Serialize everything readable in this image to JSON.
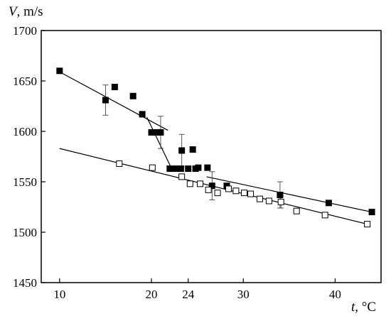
{
  "chart_data": {
    "type": "scatter",
    "title": "",
    "xlabel": {
      "symbol": "t",
      "unit": ", °C"
    },
    "ylabel": {
      "symbol": "V",
      "unit": ", m/s"
    },
    "xlim": [
      8,
      45
    ],
    "ylim": [
      1450,
      1700
    ],
    "x_ticks": [
      10,
      20,
      24,
      30,
      40
    ],
    "y_ticks": [
      1450,
      1500,
      1550,
      1600,
      1650,
      1700
    ],
    "grid": false,
    "legend": "none",
    "series": [
      {
        "marker": "filled-square",
        "color": "#000000",
        "points": [
          {
            "x": 10.0,
            "y": 1660
          },
          {
            "x": 15.0,
            "y": 1631,
            "err": 15
          },
          {
            "x": 16.0,
            "y": 1644
          },
          {
            "x": 18.0,
            "y": 1635
          },
          {
            "x": 19.0,
            "y": 1617
          },
          {
            "x": 20.0,
            "y": 1599
          },
          {
            "x": 20.6,
            "y": 1599
          },
          {
            "x": 21.0,
            "y": 1599,
            "err": 16
          },
          {
            "x": 22.0,
            "y": 1563
          },
          {
            "x": 22.6,
            "y": 1563
          },
          {
            "x": 23.2,
            "y": 1563
          },
          {
            "x": 23.3,
            "y": 1581,
            "err": 16
          },
          {
            "x": 24.0,
            "y": 1563
          },
          {
            "x": 24.5,
            "y": 1582
          },
          {
            "x": 24.8,
            "y": 1563
          },
          {
            "x": 25.1,
            "y": 1564
          },
          {
            "x": 26.1,
            "y": 1564
          },
          {
            "x": 26.6,
            "y": 1546,
            "err": 14
          },
          {
            "x": 28.2,
            "y": 1546
          },
          {
            "x": 34.0,
            "y": 1537,
            "err": 13
          },
          {
            "x": 39.3,
            "y": 1529
          },
          {
            "x": 44.0,
            "y": 1520
          }
        ],
        "fit_lines": [
          {
            "x": [
              10.0,
              21.8
            ],
            "y": [
              1659,
              1601
            ]
          },
          {
            "x": [
              19.5,
              22.2
            ],
            "y": [
              1614,
              1563
            ]
          },
          {
            "x": [
              26.0,
              44.0
            ],
            "y": [
              1555,
              1520
            ]
          }
        ]
      },
      {
        "marker": "open-square",
        "color": "#000000",
        "points": [
          {
            "x": 16.5,
            "y": 1568
          },
          {
            "x": 20.1,
            "y": 1564
          },
          {
            "x": 23.3,
            "y": 1555
          },
          {
            "x": 24.2,
            "y": 1548
          },
          {
            "x": 25.3,
            "y": 1548
          },
          {
            "x": 26.2,
            "y": 1542
          },
          {
            "x": 27.2,
            "y": 1539
          },
          {
            "x": 28.4,
            "y": 1543
          },
          {
            "x": 29.2,
            "y": 1541
          },
          {
            "x": 30.1,
            "y": 1539
          },
          {
            "x": 30.8,
            "y": 1538
          },
          {
            "x": 31.8,
            "y": 1533
          },
          {
            "x": 32.8,
            "y": 1531
          },
          {
            "x": 34.1,
            "y": 1530,
            "err": 6
          },
          {
            "x": 35.8,
            "y": 1521
          },
          {
            "x": 38.9,
            "y": 1517
          },
          {
            "x": 43.5,
            "y": 1508
          }
        ],
        "fit_lines": [
          {
            "x": [
              10.0,
              43.5
            ],
            "y": [
              1583,
              1508
            ]
          }
        ]
      }
    ]
  }
}
